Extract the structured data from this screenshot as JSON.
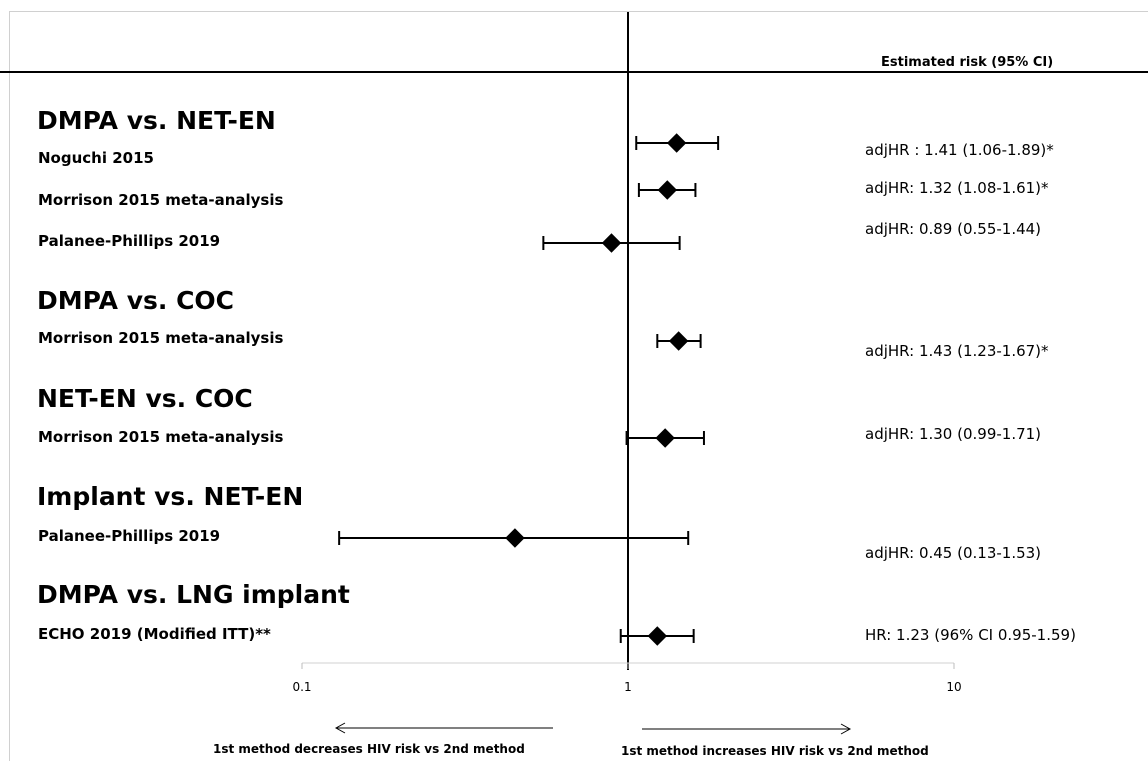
{
  "chart_data": {
    "type": "forest",
    "scale": "log",
    "x_ticks": [
      "0.1",
      "1",
      "10"
    ],
    "x_tick_values": [
      0.1,
      1,
      10
    ],
    "xlim": [
      0.1,
      10
    ],
    "reference_line": 1,
    "column_header": "Estimated risk (95% CI)",
    "left_arrow_label": "1st method decreases HIV risk vs 2nd method",
    "right_arrow_label": "1st method increases HIV risk vs 2nd method",
    "groups": [
      {
        "title": "DMPA vs. NET-EN",
        "rows": [
          {
            "study": "Noguchi  2015",
            "estimate": 1.41,
            "lower": 1.06,
            "upper": 1.89,
            "label": "adjHR : 1.41 (1.06-1.89)*"
          },
          {
            "study": "Morrison 2015 meta-analysis",
            "estimate": 1.32,
            "lower": 1.08,
            "upper": 1.61,
            "label": "adjHR: 1.32 (1.08-1.61)*"
          },
          {
            "study": "Palanee-Phillips 2019",
            "estimate": 0.89,
            "lower": 0.55,
            "upper": 1.44,
            "label": "adjHR: 0.89 (0.55-1.44)"
          }
        ]
      },
      {
        "title": "DMPA vs. COC",
        "rows": [
          {
            "study": "Morrison 2015 meta-analysis",
            "estimate": 1.43,
            "lower": 1.23,
            "upper": 1.67,
            "label": "adjHR: 1.43 (1.23-1.67)*"
          }
        ]
      },
      {
        "title": "NET-EN  vs. COC",
        "rows": [
          {
            "study": "Morrison 2015 meta-analysis",
            "estimate": 1.3,
            "lower": 0.99,
            "upper": 1.71,
            "label": "adjHR: 1.30 (0.99-1.71)"
          }
        ]
      },
      {
        "title": "Implant vs. NET-EN",
        "rows": [
          {
            "study": "Palanee-Phillips 2019",
            "estimate": 0.45,
            "lower": 0.13,
            "upper": 1.53,
            "label": "adjHR: 0.45 (0.13-1.53)"
          }
        ]
      },
      {
        "title": "DMPA vs. LNG implant",
        "rows": [
          {
            "study": "ECHO 2019 (Modified ITT)**",
            "estimate": 1.23,
            "lower": 0.95,
            "upper": 1.59,
            "label": "HR: 1.23 (96% CI 0.95-1.59)"
          }
        ]
      }
    ]
  }
}
